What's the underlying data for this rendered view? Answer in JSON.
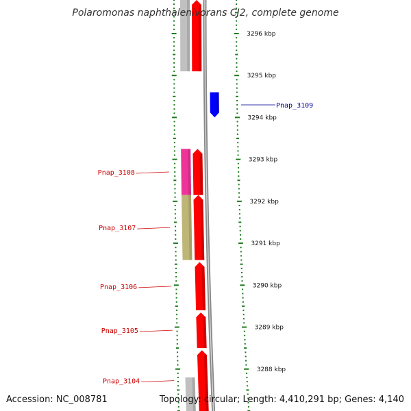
{
  "title": "Polaromonas naphthalenivorans CJ2, complete genome",
  "accession_text": "Accession: NC_008781",
  "topology_text": "Topology: circular; Length: 4,410,291 bp; Genes: 4,140",
  "scale": {
    "unit": "kbp",
    "top_kbp": 3296.8,
    "bottom_kbp": 3287.0,
    "ticks": [
      {
        "value": 3296,
        "label": "3296 kbp"
      },
      {
        "value": 3295,
        "label": "3295 kbp"
      },
      {
        "value": 3294,
        "label": "3294 kbp"
      },
      {
        "value": 3293,
        "label": "3293 kbp"
      },
      {
        "value": 3292,
        "label": "3292 kbp"
      },
      {
        "value": 3291,
        "label": "3291 kbp"
      },
      {
        "value": 3290,
        "label": "3290 kbp"
      },
      {
        "value": 3289,
        "label": "3289 kbp"
      },
      {
        "value": 3288,
        "label": "3288 kbp"
      }
    ]
  },
  "colors": {
    "forward_cds": "#ff0000",
    "reverse_cds": "#0000ff",
    "backbone": "#888888",
    "ticks": "#1a7a1a",
    "forward_label": "#cc0000",
    "reverse_label": "#000099"
  },
  "genes": [
    {
      "label": "",
      "strand": "forward",
      "start_kbp": 3295.1,
      "end_kbp": 3296.8,
      "color": "#ff0000"
    },
    {
      "label": "Pnap_3109",
      "strand": "reverse",
      "start_kbp": 3294.0,
      "end_kbp": 3294.6,
      "color": "#0000ff"
    },
    {
      "label": "Pnap_3108",
      "strand": "forward",
      "start_kbp": 3292.15,
      "end_kbp": 3293.25,
      "color": "#ff0000"
    },
    {
      "label": "Pnap_3107",
      "strand": "forward",
      "start_kbp": 3290.6,
      "end_kbp": 3292.15,
      "color": "#ff0000"
    },
    {
      "label": "Pnap_3106",
      "strand": "forward",
      "start_kbp": 3289.4,
      "end_kbp": 3290.55,
      "color": "#ff0000"
    },
    {
      "label": "Pnap_3105",
      "strand": "forward",
      "start_kbp": 3288.5,
      "end_kbp": 3289.35,
      "color": "#ff0000"
    },
    {
      "label": "Pnap_3104",
      "strand": "forward",
      "start_kbp": 3287.0,
      "end_kbp": 3288.45,
      "color": "#ff0000"
    }
  ],
  "cog_blocks": [
    {
      "start_kbp": 3295.1,
      "end_kbp": 3296.8,
      "color": "#c0c0c0"
    },
    {
      "start_kbp": 3292.15,
      "end_kbp": 3293.25,
      "color": "#ee3399"
    },
    {
      "start_kbp": 3290.6,
      "end_kbp": 3292.15,
      "color": "#bdb677"
    },
    {
      "start_kbp": 3287.0,
      "end_kbp": 3287.8,
      "color": "#c0c0c0"
    }
  ]
}
